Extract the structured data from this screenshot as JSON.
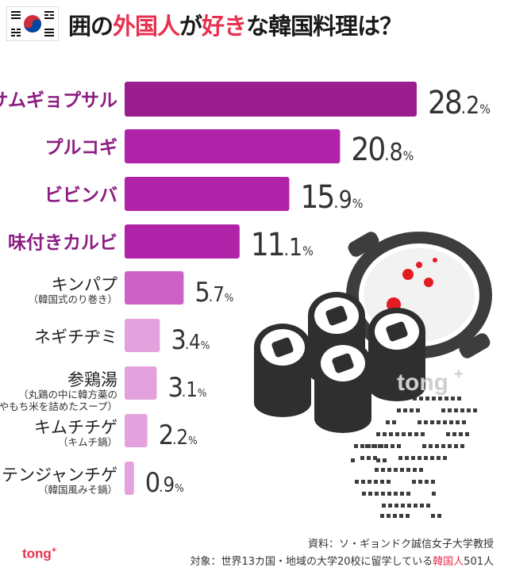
{
  "header": {
    "title_part1": "囲の",
    "title_accent1": "外国人",
    "title_part2": "が",
    "title_accent2": "好き",
    "title_part3": "な韓国料理は？"
  },
  "chart_data": {
    "type": "bar",
    "orientation": "horizontal",
    "categories": [
      {
        "name": "サムギョプサル",
        "sub": ""
      },
      {
        "name": "プルコギ",
        "sub": ""
      },
      {
        "name": "ビビンバ",
        "sub": ""
      },
      {
        "name": "味付きカルビ",
        "sub": ""
      },
      {
        "name": "キンパプ",
        "sub": "（韓国式のり巻き）"
      },
      {
        "name": "ネギチヂミ",
        "sub": ""
      },
      {
        "name": "参鶏湯",
        "sub": "（丸鶏の中に韓方薬の\n材料やもち米を詰めたスープ）"
      },
      {
        "name": "キムチチゲ",
        "sub": "（キムチ鍋）"
      },
      {
        "name": "テンジャンチゲ",
        "sub": "（韓国風みそ鍋）"
      }
    ],
    "values": [
      28.2,
      20.8,
      15.9,
      11.1,
      5.7,
      3.4,
      3.1,
      2.2,
      0.9
    ],
    "unit": "%",
    "colors": [
      "#9b1e8f",
      "#b022a8",
      "#b022a8",
      "#b022a8",
      "#cd62c6",
      "#e3a2dd",
      "#e3a2dd",
      "#e3a2dd",
      "#e3a2dd"
    ],
    "xlim": [
      0,
      28.2
    ]
  },
  "logo": {
    "text": "tong",
    "plus": "+"
  },
  "footer": {
    "brand": "tong",
    "brand_plus": "+",
    "source": "資料：ソ・ギョンドク誠信女子大学教授",
    "target_part1": "対象：世界13カ国・地域の大学20校に留学している",
    "target_accent": "韓国人",
    "target_part2": "501人"
  },
  "colors": {
    "accent_red": "#e8304f",
    "label_purple": "#8c1d82",
    "illustration": "#3d3d3d"
  }
}
